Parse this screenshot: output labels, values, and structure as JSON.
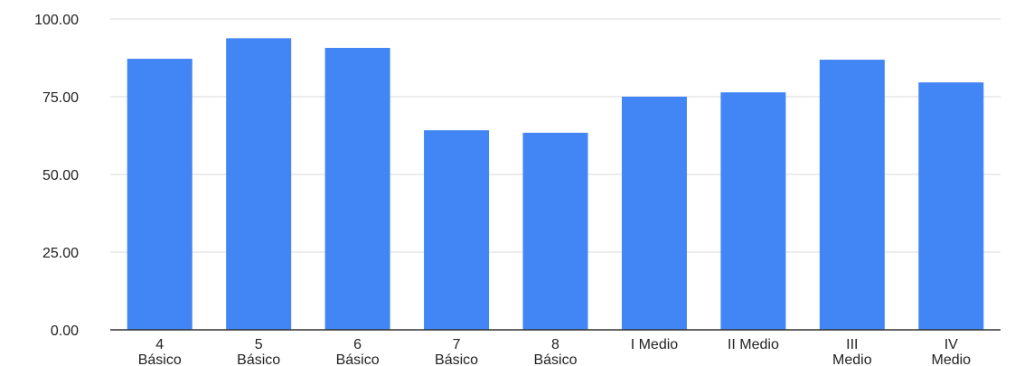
{
  "chart_data": {
    "type": "bar",
    "categories": [
      [
        "4",
        "Básico"
      ],
      [
        "5",
        "Básico"
      ],
      [
        "6",
        "Básico"
      ],
      [
        "7",
        "Básico"
      ],
      [
        "8",
        "Básico"
      ],
      [
        "I Medio"
      ],
      [
        "II Medio"
      ],
      [
        "III",
        "Medio"
      ],
      [
        "IV",
        "Medio"
      ]
    ],
    "values": [
      87.2,
      93.8,
      90.7,
      64.2,
      63.4,
      75.0,
      76.4,
      86.9,
      79.6
    ],
    "ylim": [
      0,
      100
    ],
    "yticks": [
      0,
      25,
      50,
      75,
      100
    ],
    "ytick_labels": [
      "0.00",
      "25.00",
      "50.00",
      "75.00",
      "100.00"
    ],
    "grid": true,
    "bar_color": "#4285f4"
  }
}
